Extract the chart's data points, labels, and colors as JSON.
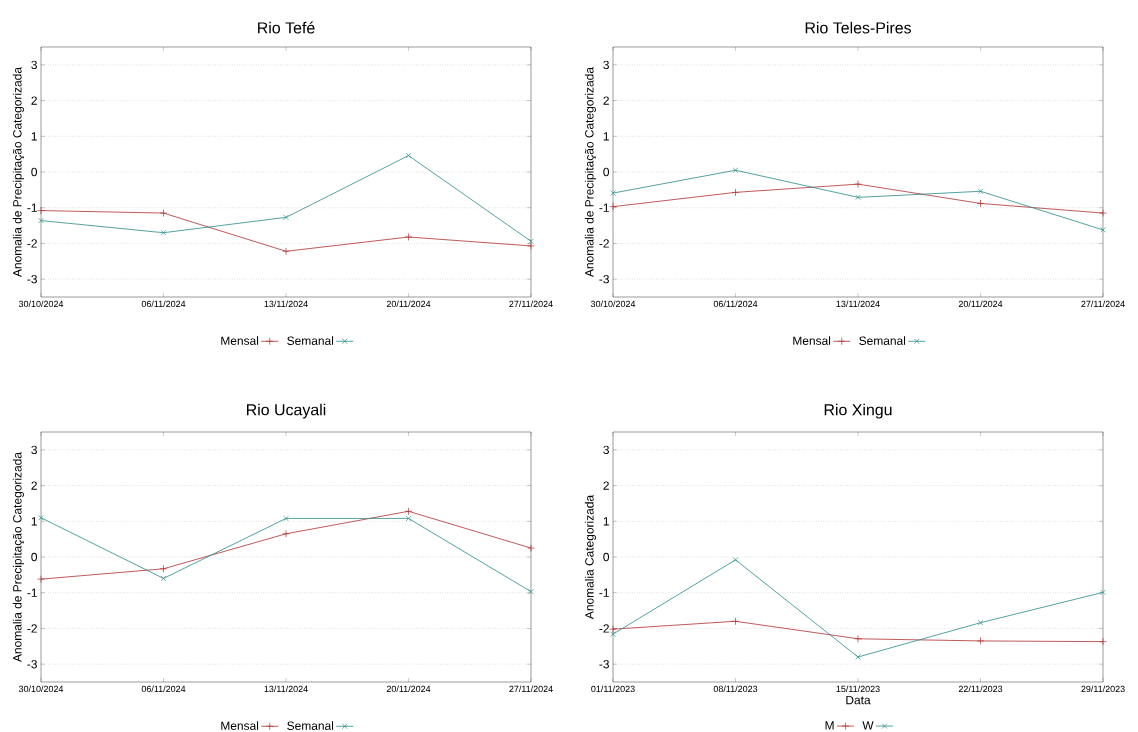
{
  "chart_data": [
    {
      "type": "line",
      "title": "Rio Tefé",
      "ylabel": "Anomalia de Precipitação Categorizada",
      "categories": [
        "30/10/2024",
        "06/11/2024",
        "13/11/2024",
        "20/11/2024",
        "27/11/2024"
      ],
      "series": [
        {
          "name": "Mensal",
          "color": "#b03030",
          "marker": "plus",
          "values": [
            -1.08,
            -1.15,
            -2.22,
            -1.82,
            -2.07
          ]
        },
        {
          "name": "Semanal",
          "color": "#2a8a8a",
          "marker": "cross",
          "values": [
            -1.36,
            -1.7,
            -1.27,
            0.46,
            -1.94
          ]
        }
      ],
      "ylim": [
        -3.5,
        3.5
      ],
      "yticks": [
        -3,
        -2,
        -1,
        0,
        1,
        2,
        3
      ],
      "grid": "y",
      "legend": "bottom"
    },
    {
      "type": "line",
      "title": "Rio Teles-Pires",
      "ylabel": "Anomalia de Precipitação Categorizada",
      "categories": [
        "30/10/2024",
        "06/11/2024",
        "13/11/2024",
        "20/11/2024",
        "27/11/2024"
      ],
      "series": [
        {
          "name": "Mensal",
          "color": "#b03030",
          "marker": "plus",
          "values": [
            -0.97,
            -0.57,
            -0.34,
            -0.88,
            -1.15
          ]
        },
        {
          "name": "Semanal",
          "color": "#2a8a8a",
          "marker": "cross",
          "values": [
            -0.59,
            0.05,
            -0.71,
            -0.54,
            -1.62
          ]
        }
      ],
      "ylim": [
        -3.5,
        3.5
      ],
      "yticks": [
        -3,
        -2,
        -1,
        0,
        1,
        2,
        3
      ],
      "grid": "y",
      "legend": "bottom"
    },
    {
      "type": "line",
      "title": "Rio Ucayali",
      "ylabel": "Anomalia de Precipitação Categorizada",
      "categories": [
        "30/10/2024",
        "06/11/2024",
        "13/11/2024",
        "20/11/2024",
        "27/11/2024"
      ],
      "series": [
        {
          "name": "Mensal",
          "color": "#b03030",
          "marker": "plus",
          "values": [
            -0.62,
            -0.33,
            0.65,
            1.28,
            0.25
          ]
        },
        {
          "name": "Semanal",
          "color": "#2a8a8a",
          "marker": "cross",
          "values": [
            1.1,
            -0.6,
            1.08,
            1.08,
            -0.97
          ]
        }
      ],
      "ylim": [
        -3.5,
        3.5
      ],
      "yticks": [
        -3,
        -2,
        -1,
        0,
        1,
        2,
        3
      ],
      "grid": "y",
      "legend": "bottom"
    },
    {
      "type": "line",
      "title": "Rio Xingu",
      "xlabel": "Data",
      "ylabel": "Anomalia Categorizada",
      "categories": [
        "01/11/2023",
        "08/11/2023",
        "15/11/2023",
        "22/11/2023",
        "29/11/2023"
      ],
      "series": [
        {
          "name": "M",
          "color": "#b03030",
          "marker": "plus",
          "values": [
            -2.02,
            -1.8,
            -2.29,
            -2.35,
            -2.37
          ]
        },
        {
          "name": "W",
          "color": "#2a8a8a",
          "marker": "cross",
          "values": [
            -2.16,
            -0.08,
            -2.8,
            -1.84,
            -0.99
          ]
        }
      ],
      "ylim": [
        -3.5,
        3.5
      ],
      "yticks": [
        -3,
        -2,
        -1,
        0,
        1,
        2,
        3
      ],
      "grid": "y",
      "legend": "bottom"
    }
  ]
}
